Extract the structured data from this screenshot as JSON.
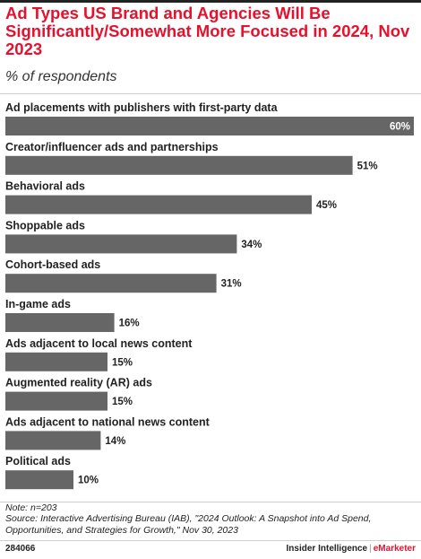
{
  "header": {
    "title": "Ad Types US Brand and Agencies Will Be Significantly/Somewhat More Focused in 2024, Nov 2023",
    "subtitle": "% of respondents"
  },
  "chart_data": {
    "type": "bar",
    "orientation": "horizontal",
    "title": "Ad Types US Brand and Agencies Will Be Significantly/Somewhat More Focused in 2024, Nov 2023",
    "subtitle": "% of respondents",
    "categories": [
      "Ad placements with publishers with first-party data",
      "Creator/influencer ads and partnerships",
      "Behavioral ads",
      "Shoppable ads",
      "Cohort-based ads",
      "In-game ads",
      "Ads adjacent to local news content",
      "Augmented reality (AR) ads",
      "Ads adjacent to national news content",
      "Political ads"
    ],
    "values": [
      60,
      51,
      45,
      34,
      31,
      16,
      15,
      15,
      14,
      10
    ],
    "value_labels": [
      "60%",
      "51%",
      "45%",
      "34%",
      "31%",
      "16%",
      "15%",
      "15%",
      "14%",
      "10%"
    ],
    "unit": "%",
    "xlim": [
      0,
      60
    ],
    "grid": false,
    "legend": "none",
    "bar_color": "#666666"
  },
  "footer": {
    "note": "Note: n=203",
    "source": "Source: Interactive Advertising Bureau (IAB), \"2024 Outlook: A Snapshot into Ad Spend, Opportunities, and Strategies for Growth,\" Nov 30, 2023",
    "chart_id": "284066",
    "brand_primary": "Insider Intelligence",
    "brand_separator": "|",
    "brand_secondary": "eMarketer"
  },
  "colors": {
    "title": "#e8112d",
    "bars": "#666666",
    "text": "#222222"
  }
}
